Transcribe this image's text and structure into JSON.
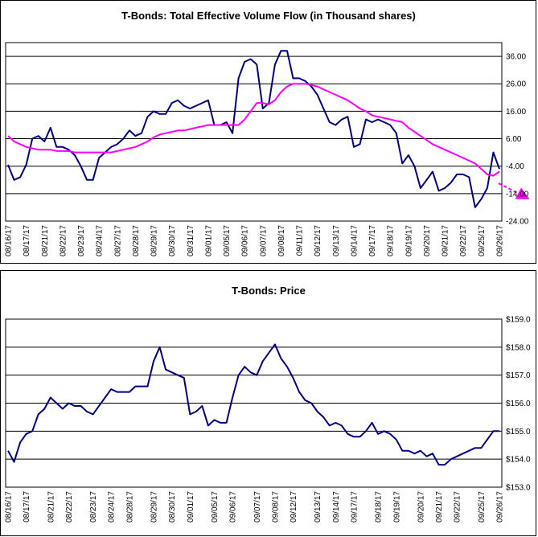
{
  "chart_data": [
    {
      "type": "line",
      "title": "T-Bonds: Total Effective Volume Flow (in Thousand shares)",
      "categories": [
        "08/16/17",
        null,
        null,
        "08/17/17",
        null,
        null,
        "08/21/17",
        null,
        null,
        "08/22/17",
        null,
        null,
        "08/23/17",
        null,
        null,
        "08/24/17",
        null,
        null,
        "08/27/17",
        null,
        null,
        "08/28/17",
        null,
        null,
        "08/29/17",
        null,
        null,
        "08/30/17",
        null,
        null,
        "08/31/17",
        null,
        null,
        "09/01/17",
        null,
        null,
        "09/05/17",
        null,
        null,
        "09/06/17",
        null,
        null,
        "09/07/17",
        null,
        null,
        "09/08/17",
        null,
        null,
        "09/11/17",
        null,
        null,
        "09/12/17",
        null,
        null,
        "09/13/17",
        null,
        null,
        "09/14/17",
        null,
        null,
        "09/17/17",
        null,
        null,
        "09/18/17",
        null,
        null,
        "09/19/17",
        null,
        null,
        "09/20/17",
        null,
        null,
        "09/21/17",
        null,
        null,
        "09/22/17",
        null,
        null,
        "09/25/17",
        null,
        null,
        "09/26/17"
      ],
      "series": [
        {
          "color": "#000080",
          "values": [
            -3.5,
            -9,
            -8,
            -3.5,
            6,
            7,
            5,
            10,
            3,
            3,
            2,
            0,
            -4,
            -9,
            -9,
            -1,
            1,
            3,
            4,
            6,
            9,
            7,
            8,
            14,
            16,
            15,
            15,
            19,
            20,
            18,
            17,
            18,
            19,
            20,
            11,
            11,
            12,
            8,
            28,
            34,
            35,
            33,
            17,
            19,
            33,
            38,
            38,
            28,
            28,
            27,
            25,
            22,
            17,
            12,
            11,
            13,
            14,
            3,
            4,
            13,
            12,
            13,
            12,
            11,
            8,
            -3,
            0,
            -4,
            -12,
            -9,
            -6,
            -13,
            -12,
            -10,
            -7,
            -7,
            -8,
            -19,
            -16,
            -12,
            1,
            -5
          ]
        },
        {
          "color": "#ff00ff",
          "values": [
            7,
            5,
            4,
            3,
            2.5,
            2,
            2,
            2,
            1.5,
            1.5,
            1.5,
            1,
            1,
            1,
            1,
            1,
            1,
            1,
            1.5,
            2,
            2.5,
            3,
            4,
            5,
            6.5,
            7.5,
            8,
            8.5,
            9,
            9,
            9.5,
            10,
            10.5,
            11,
            11,
            11,
            11,
            11,
            11,
            13,
            16,
            19,
            19,
            18.5,
            20,
            23,
            25,
            26,
            26,
            26,
            25.5,
            25,
            24,
            23,
            22,
            21,
            20,
            18.5,
            17,
            16,
            14.5,
            14,
            13.5,
            13,
            12.5,
            12,
            10,
            8.5,
            7,
            5.5,
            4,
            3,
            2,
            1,
            0,
            -1,
            -2,
            -3,
            -5,
            -7,
            -7.5,
            -6
          ]
        }
      ],
      "ylim": [
        -24,
        41
      ],
      "yticks": [
        {
          "value": 36,
          "label": "36.00"
        },
        {
          "value": 26,
          "label": "26.00"
        },
        {
          "value": 16,
          "label": "16.00"
        },
        {
          "value": 6,
          "label": "6.00"
        },
        {
          "value": -4,
          "label": "-4.00"
        },
        {
          "value": -14,
          "label": "-14.00"
        },
        {
          "value": -24,
          "label": "-24.00"
        }
      ],
      "grid": true
    },
    {
      "type": "line",
      "title": "T-Bonds: Price",
      "categories": [
        "08/16/17",
        null,
        null,
        "08/17/17",
        null,
        null,
        null,
        "08/21/17",
        null,
        null,
        "08/22/17",
        null,
        null,
        null,
        "08/23/17",
        null,
        null,
        "08/24/17",
        null,
        null,
        "08/28/17",
        null,
        null,
        null,
        "08/29/17",
        null,
        null,
        "08/30/17",
        null,
        null,
        "09/01/17",
        null,
        null,
        null,
        "09/05/17",
        null,
        null,
        "09/06/17",
        null,
        null,
        null,
        "09/07/17",
        null,
        null,
        "09/08/17",
        null,
        null,
        "09/12/17",
        null,
        null,
        null,
        "09/13/17",
        null,
        null,
        "09/14/17",
        null,
        null,
        "09/17/17",
        null,
        null,
        null,
        "09/18/17",
        null,
        null,
        "09/19/17",
        null,
        null,
        null,
        "09/20/17",
        null,
        null,
        "09/21/17",
        null,
        null,
        "09/22/17",
        null,
        null,
        null,
        "09/25/17",
        null,
        null,
        "09/26/17"
      ],
      "series": [
        {
          "color": "#000080",
          "values": [
            154.3,
            153.9,
            154.6,
            154.9,
            155.0,
            155.6,
            155.8,
            156.2,
            156.0,
            155.8,
            156.0,
            155.9,
            155.9,
            155.7,
            155.6,
            155.9,
            156.2,
            156.5,
            156.4,
            156.4,
            156.4,
            156.6,
            156.6,
            156.6,
            157.5,
            158.0,
            157.2,
            157.1,
            157.0,
            156.9,
            155.6,
            155.7,
            155.9,
            155.2,
            155.4,
            155.3,
            155.3,
            156.2,
            157.0,
            157.3,
            157.1,
            157.0,
            157.5,
            157.8,
            158.1,
            157.6,
            157.3,
            156.9,
            156.4,
            156.1,
            156.0,
            155.7,
            155.5,
            155.2,
            155.3,
            155.2,
            154.9,
            154.8,
            154.8,
            155.0,
            155.3,
            154.9,
            155.0,
            154.9,
            154.7,
            154.3,
            154.3,
            154.2,
            154.3,
            154.1,
            154.2,
            153.8,
            153.8,
            154.0,
            154.1,
            154.2,
            154.3,
            154.4,
            154.4,
            154.7,
            155.0,
            155.0
          ]
        }
      ],
      "ylim": [
        153,
        159
      ],
      "yticks": [
        {
          "value": 159,
          "label": "$159.0"
        },
        {
          "value": 158,
          "label": "$158.0"
        },
        {
          "value": 157,
          "label": "$157.0"
        },
        {
          "value": 156,
          "label": "$156.0"
        },
        {
          "value": 155,
          "label": "$155.0"
        },
        {
          "value": 154,
          "label": "$154.0"
        },
        {
          "value": 153,
          "label": "$153.0"
        }
      ],
      "grid": true
    }
  ]
}
